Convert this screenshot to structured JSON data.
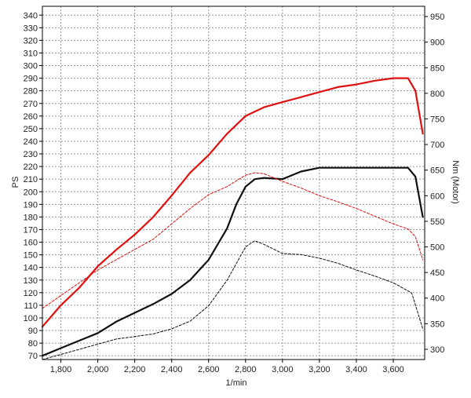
{
  "chart_data": {
    "type": "line",
    "xlabel": "1/min",
    "ylabel_left": "PS",
    "ylabel_right": "Nm (Motor)",
    "xlim": [
      1700,
      3770
    ],
    "ylim_left": [
      67,
      347
    ],
    "ylim_right": [
      280,
      970
    ],
    "x_ticks": [
      1800,
      2000,
      2200,
      2400,
      2600,
      2800,
      3000,
      3200,
      3400,
      3600
    ],
    "x_tick_labels": [
      "1,800",
      "2,000",
      "2,200",
      "2,400",
      "2,600",
      "2,800",
      "3,000",
      "3,200",
      "3,400",
      "3,600"
    ],
    "y_left_ticks": [
      70,
      80,
      90,
      100,
      110,
      120,
      130,
      140,
      150,
      160,
      170,
      180,
      190,
      200,
      210,
      220,
      230,
      240,
      250,
      260,
      270,
      280,
      290,
      300,
      310,
      320,
      330,
      340
    ],
    "y_right_ticks": [
      300,
      350,
      400,
      450,
      500,
      550,
      600,
      650,
      700,
      750,
      800,
      850,
      900,
      950
    ],
    "grid": true,
    "series": [
      {
        "color": "#e01010",
        "style": "solid",
        "axis": "left",
        "x": [
          1700,
          1800,
          1900,
          2000,
          2100,
          2200,
          2300,
          2400,
          2500,
          2600,
          2700,
          2800,
          2900,
          3000,
          3100,
          3200,
          3300,
          3400,
          3500,
          3600,
          3680,
          3720,
          3760
        ],
        "y": [
          93,
          110,
          124,
          141,
          154,
          166,
          180,
          197,
          215,
          229,
          246,
          260,
          267,
          271,
          275,
          279,
          283,
          285,
          288,
          290,
          290,
          280,
          246
        ]
      },
      {
        "color": "#111111",
        "style": "solid",
        "axis": "left",
        "x": [
          1700,
          1800,
          1900,
          2000,
          2100,
          2200,
          2300,
          2400,
          2500,
          2600,
          2700,
          2750,
          2800,
          2850,
          2900,
          3000,
          3050,
          3100,
          3200,
          3300,
          3400,
          3500,
          3600,
          3680,
          3720,
          3760
        ],
        "y": [
          70,
          76,
          82,
          88,
          97,
          104,
          111,
          119,
          130,
          146,
          171,
          190,
          204,
          210,
          211,
          210,
          213,
          216,
          219,
          219,
          219,
          219,
          219,
          219,
          212,
          180
        ]
      },
      {
        "color": "#e01010",
        "style": "dashed",
        "axis": "right",
        "x": [
          1700,
          1800,
          1900,
          2000,
          2100,
          2200,
          2300,
          2400,
          2500,
          2600,
          2700,
          2800,
          2850,
          2900,
          3000,
          3100,
          3200,
          3300,
          3400,
          3500,
          3600,
          3680,
          3720,
          3760
        ],
        "y": [
          380,
          405,
          430,
          455,
          475,
          495,
          515,
          545,
          575,
          602,
          618,
          640,
          645,
          643,
          628,
          615,
          600,
          588,
          575,
          560,
          545,
          535,
          520,
          475
        ]
      },
      {
        "color": "#111111",
        "style": "dashed",
        "axis": "right",
        "x": [
          1700,
          1800,
          1900,
          2000,
          2100,
          2200,
          2300,
          2400,
          2500,
          2600,
          2700,
          2800,
          2850,
          2900,
          3000,
          3100,
          3200,
          3300,
          3400,
          3500,
          3600,
          3700,
          3760
        ],
        "y": [
          280,
          290,
          300,
          310,
          320,
          325,
          330,
          340,
          355,
          385,
          435,
          500,
          512,
          505,
          487,
          485,
          478,
          468,
          455,
          443,
          430,
          410,
          340
        ]
      }
    ]
  }
}
